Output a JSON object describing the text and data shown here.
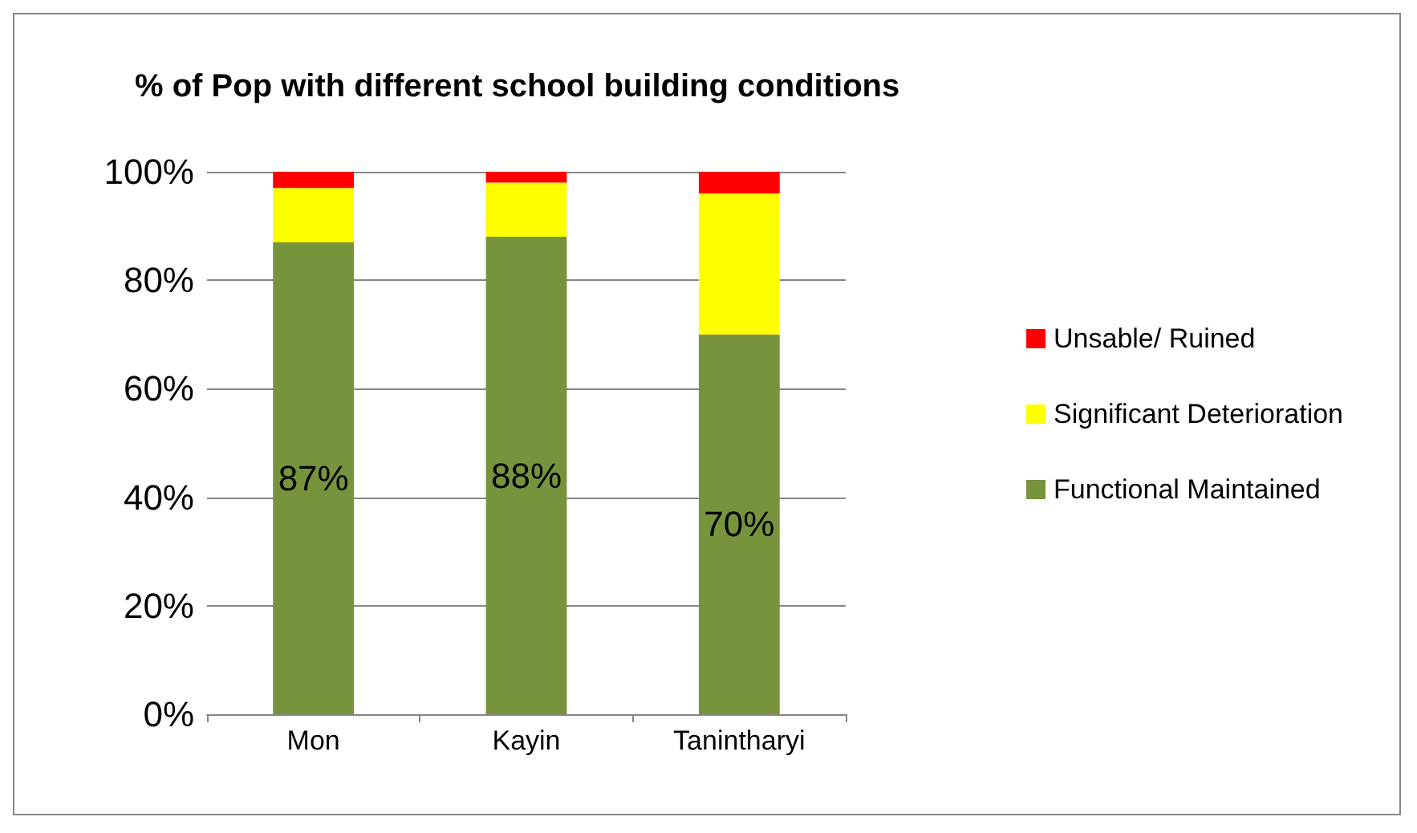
{
  "chart_data": {
    "type": "bar",
    "title": "% of Pop with different school building conditions",
    "categories": [
      "Mon",
      "Kayin",
      "Tanintharyi"
    ],
    "stacked": true,
    "series": [
      {
        "name": "Functional Maintained",
        "color": "#77933c",
        "values": [
          87,
          88,
          70
        ],
        "value_labels": [
          "87%",
          "88%",
          "70%"
        ]
      },
      {
        "name": "Significant Deterioration",
        "color": "#ffff00",
        "values": [
          10,
          10,
          26
        ]
      },
      {
        "name": "Unsable/ Ruined",
        "color": "#ff0000",
        "values": [
          3,
          2,
          4
        ]
      }
    ],
    "ylim": [
      0,
      100
    ],
    "yticks": [
      {
        "value": 0,
        "label": "0%"
      },
      {
        "value": 20,
        "label": "20%"
      },
      {
        "value": 40,
        "label": "40%"
      },
      {
        "value": 60,
        "label": "60%"
      },
      {
        "value": 80,
        "label": "80%"
      },
      {
        "value": 100,
        "label": "100%"
      }
    ],
    "grid": "y",
    "legend": "right"
  }
}
